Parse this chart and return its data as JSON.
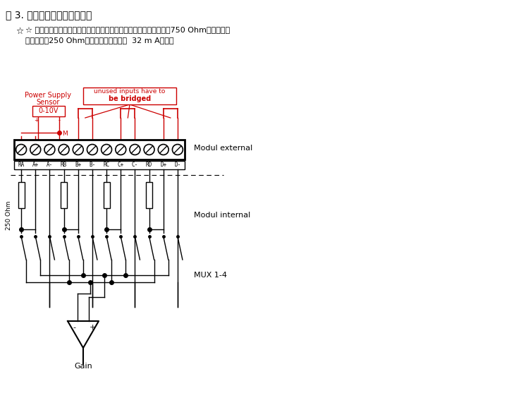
{
  "title": "图 3. 三线制电流信号测量接线",
  "note_line1": "☆ 为了防止模拟量模块因短路而损坏，可以在传感器回路中串入一个750 Ohm电阻。它将",
  "note_line2": "串接在内部250 Ohm电阻上并保证电流在  32 m A以下。",
  "label_power_supply": "Power Supply",
  "label_sensor": "Sensor",
  "label_0_10v": "0-10V",
  "label_plus": "+",
  "label_minus": "-",
  "label_M": "M",
  "label_unused1": "unused inputs have to",
  "label_unused2": "be bridged",
  "label_modul_external": "Modul external",
  "label_modul_internal": "Modul internal",
  "label_mux": "MUX 1-4",
  "label_gain": "Gain",
  "label_250ohm": "250 Ohm",
  "terminal_labels": [
    "RA",
    "A+",
    "A-",
    "RB",
    "B+",
    "B-",
    "RC",
    "C+",
    "C-",
    "RD",
    "D+",
    "D-"
  ],
  "bg_color": "#ffffff",
  "red_color": "#cc0000",
  "black_color": "#000000",
  "fig_width": 7.32,
  "fig_height": 5.64
}
